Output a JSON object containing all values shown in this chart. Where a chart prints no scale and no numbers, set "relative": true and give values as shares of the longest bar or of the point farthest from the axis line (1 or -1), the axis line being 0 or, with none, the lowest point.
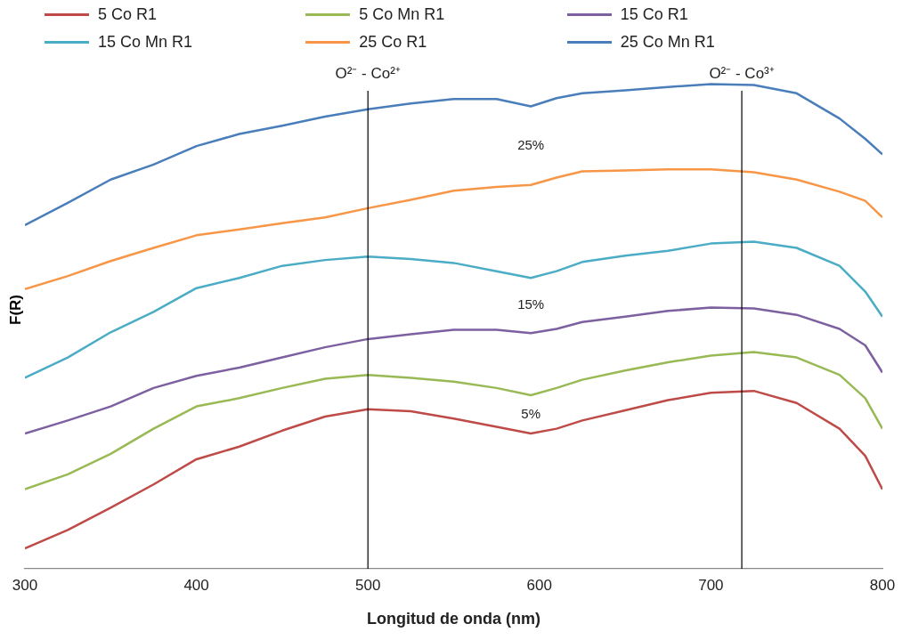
{
  "chart_data": {
    "type": "line",
    "xlabel": "Longitud de onda (nm)",
    "ylabel": "F(R)",
    "relative": true,
    "x": [
      300,
      325,
      350,
      375,
      400,
      425,
      450,
      475,
      500,
      525,
      550,
      575,
      595,
      610,
      625,
      650,
      675,
      700,
      725,
      750,
      775,
      790,
      800
    ],
    "xlim": [
      300,
      800
    ],
    "xticks": [
      300,
      400,
      500,
      600,
      700,
      800
    ],
    "grid": false,
    "legend": "top",
    "marker": "none",
    "line_style": "solid",
    "series": [
      {
        "name": "5 Co R1",
        "color": "#be4b48",
        "values": [
          0.042,
          0.08,
          0.126,
          0.174,
          0.226,
          0.252,
          0.285,
          0.314,
          0.329,
          0.325,
          0.31,
          0.293,
          0.279,
          0.289,
          0.306,
          0.327,
          0.348,
          0.363,
          0.367,
          0.342,
          0.289,
          0.233,
          0.164
        ]
      },
      {
        "name": "5 Co Mn R1",
        "color": "#98b954",
        "values": [
          0.164,
          0.195,
          0.237,
          0.289,
          0.335,
          0.352,
          0.373,
          0.392,
          0.4,
          0.394,
          0.386,
          0.373,
          0.358,
          0.373,
          0.39,
          0.409,
          0.426,
          0.44,
          0.447,
          0.436,
          0.4,
          0.352,
          0.289
        ]
      },
      {
        "name": "15 Co R1",
        "color": "#7d60a0",
        "values": [
          0.279,
          0.306,
          0.335,
          0.373,
          0.398,
          0.415,
          0.436,
          0.457,
          0.474,
          0.484,
          0.493,
          0.493,
          0.486,
          0.495,
          0.509,
          0.52,
          0.532,
          0.539,
          0.537,
          0.524,
          0.495,
          0.461,
          0.405
        ]
      },
      {
        "name": "15 Co Mn R1",
        "color": "#4bacc6",
        "values": [
          0.394,
          0.436,
          0.488,
          0.53,
          0.579,
          0.6,
          0.625,
          0.637,
          0.644,
          0.639,
          0.631,
          0.614,
          0.6,
          0.614,
          0.633,
          0.646,
          0.656,
          0.671,
          0.675,
          0.662,
          0.625,
          0.572,
          0.52
        ]
      },
      {
        "name": "25 Co R1",
        "color": "#f79646",
        "values": [
          0.577,
          0.604,
          0.635,
          0.662,
          0.688,
          0.7,
          0.713,
          0.725,
          0.744,
          0.761,
          0.78,
          0.788,
          0.792,
          0.807,
          0.82,
          0.822,
          0.824,
          0.824,
          0.818,
          0.803,
          0.778,
          0.759,
          0.725
        ]
      },
      {
        "name": "25 Co Mn R1",
        "color": "#4a7ebb",
        "values": [
          0.709,
          0.755,
          0.803,
          0.834,
          0.872,
          0.897,
          0.914,
          0.933,
          0.948,
          0.96,
          0.969,
          0.969,
          0.954,
          0.971,
          0.981,
          0.987,
          0.994,
          1.0,
          0.998,
          0.981,
          0.929,
          0.887,
          0.855
        ]
      }
    ],
    "ref_lines": [
      {
        "axis": "x",
        "value": 500,
        "label": "O²⁻ - Co²⁺",
        "color": "#000000"
      },
      {
        "axis": "x",
        "value": 718,
        "label": "O²⁻ - Co³⁺",
        "color": "#000000"
      }
    ],
    "annotations": [
      "25%",
      "15%",
      "5%"
    ]
  }
}
